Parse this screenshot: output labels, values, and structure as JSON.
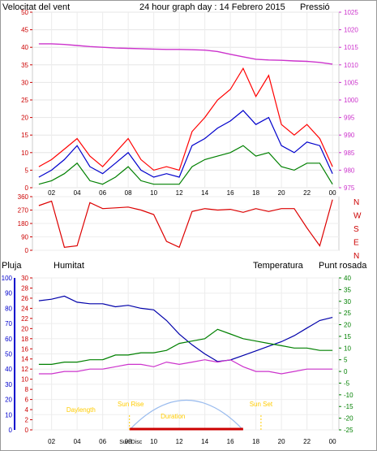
{
  "header": {
    "wind_title": "Velocitat del vent",
    "graph_title": "24 hour graph day : 14 Febrero 2015",
    "pressure_title": "Pressió"
  },
  "panel2": {
    "right_labels": [
      "N",
      "W",
      "S",
      "E",
      "N"
    ]
  },
  "panel3": {
    "rain_label": "Pluja",
    "humidity_label": "Humitat",
    "temperature_label": "Temperatura",
    "dewpoint_label": "Punt rosada"
  },
  "colors": {
    "wind_gust": "#ff0000",
    "wind_avg": "#0000cc",
    "wind_min": "#008000",
    "pressure": "#cc33cc",
    "direction": "#dd0000",
    "humidity": "#0000aa",
    "temperature": "#008000",
    "dewpoint": "#cc33cc",
    "sun_arc": "#99bbee",
    "annotations": "#ffcc00",
    "rain_axis": "#cc0000",
    "humidity_axis": "#0000cc",
    "temp_axis": "#008000"
  },
  "chart_data": [
    {
      "type": "line",
      "name": "wind-pressure",
      "title": "24 hour graph day : 14 Febrero 2015",
      "x_ticks": [
        "02",
        "04",
        "06",
        "08",
        "10",
        "12",
        "14",
        "16",
        "18",
        "20",
        "22",
        "00"
      ],
      "y_left_ticks": [
        "0",
        "5",
        "10",
        "15",
        "20",
        "25",
        "30",
        "35",
        "40",
        "45",
        "50"
      ],
      "y_right_ticks": [
        "975",
        "980",
        "985",
        "990",
        "995",
        "1000",
        "1005",
        "1010",
        "1015",
        "1020",
        "1025"
      ],
      "ylim_left": [
        0,
        50
      ],
      "ylim_right": [
        975,
        1025
      ],
      "x": [
        1,
        2,
        3,
        4,
        5,
        6,
        7,
        8,
        9,
        10,
        11,
        12,
        13,
        14,
        15,
        16,
        17,
        18,
        19,
        20,
        21,
        22,
        23,
        24
      ],
      "series": [
        {
          "axis": "left",
          "values": [
            6,
            8,
            11,
            14,
            9,
            6,
            10,
            14,
            8,
            5,
            6,
            5,
            16,
            20,
            25,
            28,
            34,
            26,
            32,
            18,
            15,
            18,
            14,
            6
          ]
        },
        {
          "axis": "left",
          "values": [
            3,
            5,
            8,
            12,
            6,
            4,
            7,
            10,
            5,
            3,
            4,
            3,
            12,
            14,
            17,
            19,
            22,
            18,
            20,
            12,
            10,
            13,
            12,
            4
          ]
        },
        {
          "axis": "left",
          "values": [
            1,
            2,
            4,
            7,
            2,
            1,
            3,
            6,
            2,
            1,
            1,
            1,
            6,
            8,
            9,
            10,
            12,
            9,
            10,
            6,
            5,
            7,
            7,
            1
          ]
        },
        {
          "axis": "right",
          "values": [
            1016,
            1016,
            1015.8,
            1015.5,
            1015.2,
            1015,
            1014.8,
            1014.7,
            1014.6,
            1014.5,
            1014.4,
            1014.4,
            1014.3,
            1014.2,
            1013.8,
            1013,
            1012.3,
            1011.6,
            1011.4,
            1011.3,
            1011.1,
            1011,
            1010.7,
            1010.2
          ]
        }
      ]
    },
    {
      "type": "line",
      "name": "wind-direction",
      "x_ticks": [],
      "y_ticks": [
        "0",
        "90",
        "180",
        "270",
        "360"
      ],
      "ylim": [
        0,
        360
      ],
      "x": [
        1,
        2,
        3,
        4,
        5,
        6,
        7,
        8,
        9,
        10,
        11,
        12,
        13,
        14,
        15,
        16,
        17,
        18,
        19,
        20,
        21,
        22,
        23,
        24
      ],
      "values": [
        300,
        330,
        20,
        30,
        320,
        280,
        285,
        290,
        270,
        240,
        60,
        20,
        260,
        280,
        270,
        275,
        255,
        280,
        260,
        280,
        280,
        150,
        30,
        340
      ]
    },
    {
      "type": "line",
      "name": "rain-humidity-temp",
      "x_ticks": [
        "02",
        "04",
        "06",
        "08",
        "10",
        "12",
        "14",
        "16",
        "18",
        "20",
        "22",
        "00"
      ],
      "y_rain_ticks": [
        "0",
        "2",
        "4",
        "6",
        "8",
        "10",
        "12",
        "14",
        "16",
        "18",
        "20",
        "22",
        "24",
        "26",
        "28",
        "30"
      ],
      "y_humidity_ticks": [
        "0",
        "10",
        "20",
        "30",
        "40",
        "50",
        "60",
        "70",
        "80",
        "90",
        "100"
      ],
      "y_temp_ticks": [
        "-25",
        "-20",
        "-15",
        "-10",
        "-5",
        "0",
        "5",
        "10",
        "15",
        "20",
        "25",
        "30",
        "35",
        "40"
      ],
      "ylim_rain": [
        0,
        30
      ],
      "ylim_humidity": [
        0,
        100
      ],
      "ylim_temp": [
        -25,
        40
      ],
      "x": [
        1,
        2,
        3,
        4,
        5,
        6,
        7,
        8,
        9,
        10,
        11,
        12,
        13,
        14,
        15,
        16,
        17,
        18,
        19,
        20,
        21,
        22,
        23,
        24
      ],
      "series": [
        {
          "axis": "humidity",
          "values": [
            85,
            86,
            88,
            84,
            83,
            83,
            81,
            82,
            80,
            79,
            72,
            63,
            56,
            50,
            45,
            46,
            49,
            52,
            55,
            58,
            62,
            67,
            72,
            74
          ]
        },
        {
          "axis": "temp",
          "values": [
            3,
            3,
            4,
            4,
            5,
            5,
            7,
            7,
            8,
            8,
            9,
            12,
            13,
            14,
            18,
            16,
            14,
            13,
            12,
            11,
            10,
            10,
            9,
            9
          ]
        },
        {
          "axis": "temp",
          "values": [
            -1,
            -1,
            0,
            0,
            1,
            1,
            2,
            3,
            3,
            2,
            4,
            3,
            4,
            5,
            4,
            5,
            2,
            0,
            0,
            -1,
            0,
            1,
            1,
            1
          ]
        }
      ],
      "annotations": [
        "Daylength",
        "Sun Rise",
        "Sun Set",
        "Sun Disc",
        "Duration"
      ]
    }
  ]
}
